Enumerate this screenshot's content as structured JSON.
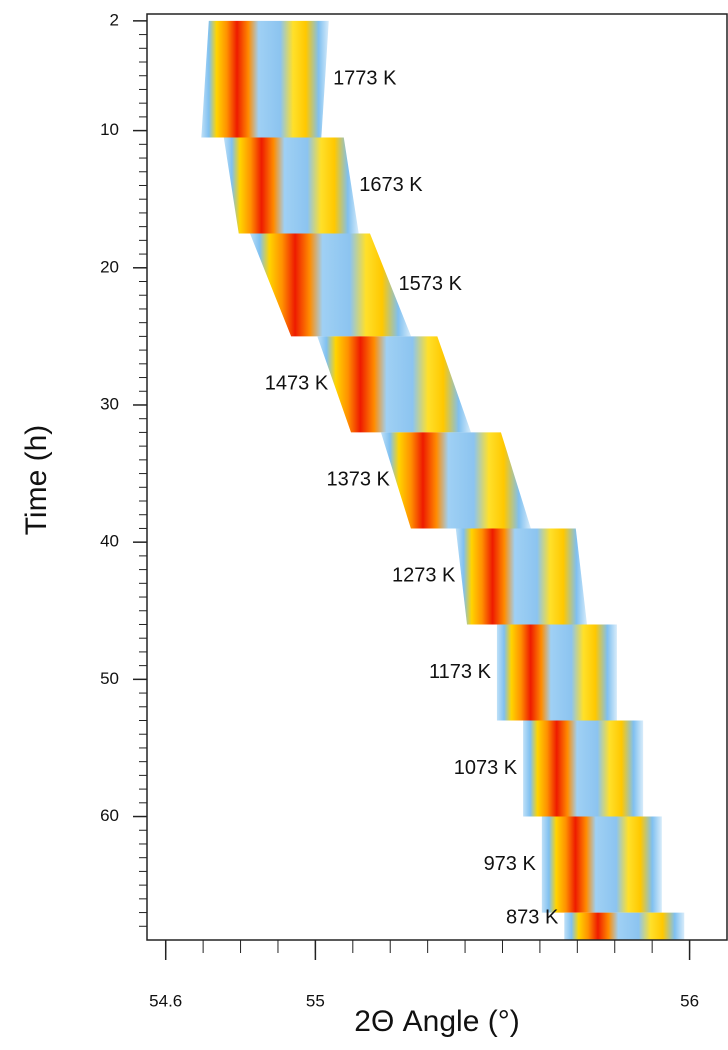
{
  "chart_data": {
    "type": "xrd-waterfall",
    "x_label": "2Θ Angle (°)",
    "y_label": "Time (h)",
    "xlim": [
      54.55,
      56.1
    ],
    "ylim": [
      1.5,
      69
    ],
    "y_reversed": true,
    "xticks": [
      54.6,
      55,
      56
    ],
    "xminorticks": [
      54.6,
      54.7,
      54.8,
      54.9,
      55,
      55.1,
      55.2,
      55.3,
      55.4,
      55.5,
      55.6,
      55.7,
      55.8,
      55.9,
      56
    ],
    "yticks": [
      2,
      10,
      20,
      30,
      40,
      50,
      60
    ],
    "yminorticks": [
      3,
      4,
      5,
      6,
      7,
      8,
      9,
      11,
      12,
      13,
      14,
      15,
      16,
      17,
      18,
      19,
      21,
      22,
      23,
      24,
      25,
      26,
      27,
      28,
      29,
      31,
      32,
      33,
      34,
      35,
      36,
      37,
      38,
      39,
      41,
      42,
      43,
      44,
      45,
      46,
      47,
      48,
      49,
      51,
      52,
      53,
      54,
      55,
      56,
      57,
      58,
      59,
      61,
      62,
      63,
      64,
      65,
      66,
      67,
      68
    ],
    "series": [
      {
        "name": "1773 K",
        "time": [
          2,
          10.5
        ],
        "peak": [
          54.79,
          54.77
        ]
      },
      {
        "name": "1673 K",
        "time": [
          10.5,
          17.5
        ],
        "peak": [
          54.83,
          54.87
        ]
      },
      {
        "name": "1573 K",
        "time": [
          17.5,
          25
        ],
        "peak": [
          54.9,
          55.01
        ]
      },
      {
        "name": "1473 K",
        "time": [
          25,
          32
        ],
        "peak": [
          55.08,
          55.17
        ]
      },
      {
        "name": "1373 K",
        "time": [
          32,
          39
        ],
        "peak": [
          55.25,
          55.33
        ]
      },
      {
        "name": "1273 K",
        "time": [
          39,
          46
        ],
        "peak": [
          55.45,
          55.48
        ]
      },
      {
        "name": "1173 K",
        "time": [
          46,
          53
        ],
        "peak": [
          55.56,
          55.56
        ]
      },
      {
        "name": "1073 K",
        "time": [
          53,
          60
        ],
        "peak": [
          55.63,
          55.63
        ]
      },
      {
        "name": "973 K",
        "time": [
          60,
          67
        ],
        "peak": [
          55.68,
          55.68
        ]
      },
      {
        "name": "873 K",
        "time": [
          67,
          69
        ],
        "peak": [
          55.74,
          55.74
        ]
      }
    ]
  }
}
